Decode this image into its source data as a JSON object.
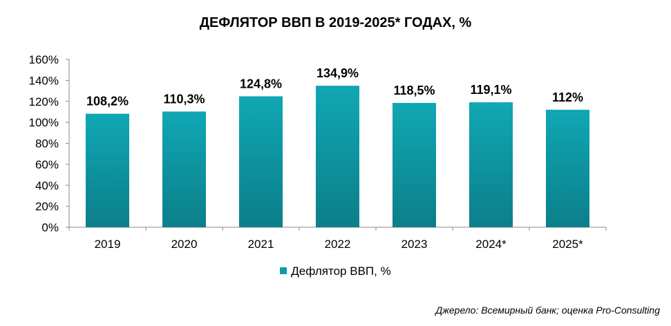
{
  "chart_data": {
    "type": "bar",
    "title": "ДЕФЛЯТОР ВВП В 2019-2025* ГОДАХ, %",
    "categories": [
      "2019",
      "2020",
      "2021",
      "2022",
      "2023",
      "2024*",
      "2025*"
    ],
    "series": [
      {
        "name": "Дефлятор ВВП, %",
        "values": [
          108.2,
          110.3,
          124.8,
          134.9,
          118.5,
          119.1,
          112
        ]
      }
    ],
    "data_labels": [
      "108,2%",
      "110,3%",
      "124,8%",
      "134,9%",
      "118,5%",
      "119,1%",
      "112%"
    ],
    "y_ticks": [
      "0%",
      "20%",
      "40%",
      "60%",
      "80%",
      "100%",
      "120%",
      "140%",
      "160%"
    ],
    "ylim": [
      0,
      160
    ],
    "grid": false,
    "legend_position": "bottom",
    "bar_color_top": "#10a7b4",
    "bar_color_bottom": "#0b7f89"
  },
  "source": "Джерело: Всемирный банк; оценка Pro-Consulting"
}
